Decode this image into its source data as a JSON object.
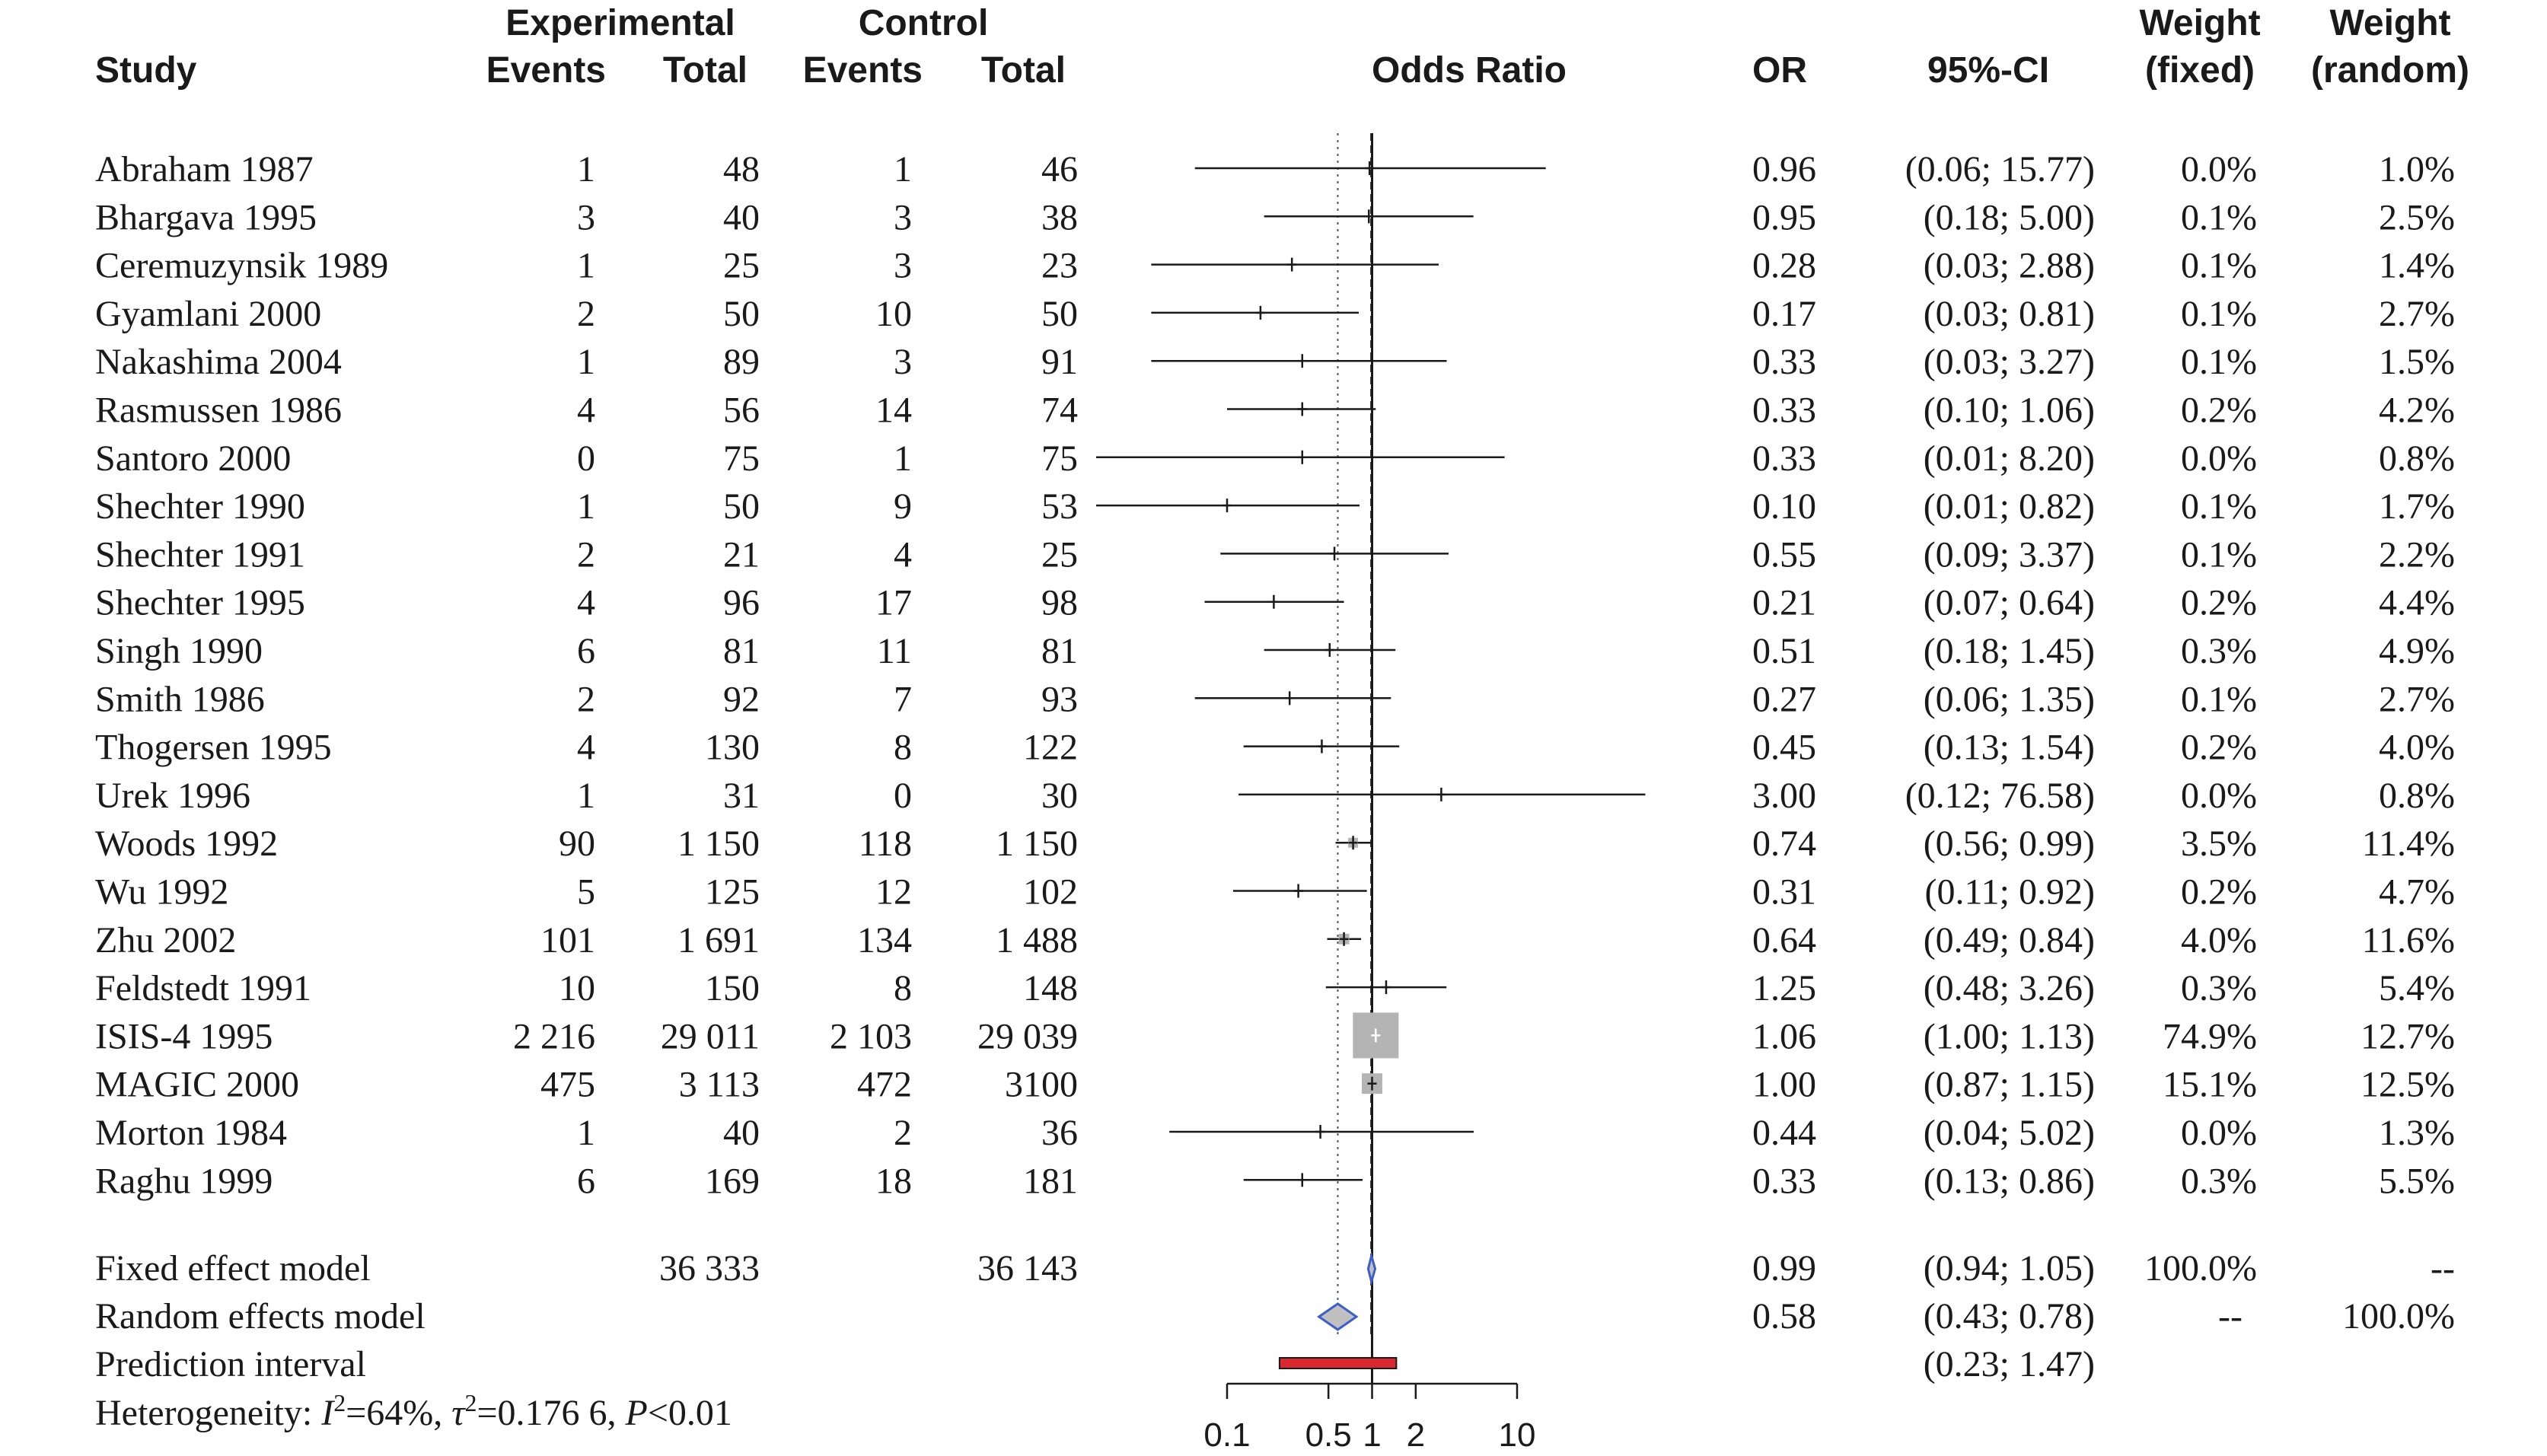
{
  "chart_data": {
    "type": "forest",
    "measure": "Odds Ratio",
    "x_scale": "log",
    "x_ticks": [
      {
        "value": 0.1,
        "label": "0.1"
      },
      {
        "value": 0.5,
        "label": "0.5"
      },
      {
        "value": 1,
        "label": "1"
      },
      {
        "value": 2,
        "label": "2"
      },
      {
        "value": 10,
        "label": "10"
      }
    ],
    "xlim": [
      0.1,
      10
    ],
    "headers": {
      "study": "Study",
      "experimental": "Experimental",
      "control": "Control",
      "events": "Events",
      "total": "Total",
      "plot": "Odds Ratio",
      "or": "OR",
      "ci": "95%-CI",
      "weight": "Weight",
      "fixed": "(fixed)",
      "random": "(random)"
    },
    "studies": [
      {
        "study": "Abraham 1987",
        "e_events": "1",
        "e_total": "48",
        "c_events": "1",
        "c_total": "46",
        "or_text": "0.96",
        "ci_text": "(0.06; 15.77)",
        "w_fixed": "0.0%",
        "w_random": "1.0%",
        "or": 0.96,
        "lower": 0.06,
        "upper": 15.77,
        "weight_fixed": 0.0
      },
      {
        "study": "Bhargava 1995",
        "e_events": "3",
        "e_total": "40",
        "c_events": "3",
        "c_total": "38",
        "or_text": "0.95",
        "ci_text": "(0.18; 5.00)",
        "w_fixed": "0.1%",
        "w_random": "2.5%",
        "or": 0.95,
        "lower": 0.18,
        "upper": 5.0,
        "weight_fixed": 0.1
      },
      {
        "study": "Ceremuzynsik 1989",
        "e_events": "1",
        "e_total": "25",
        "c_events": "3",
        "c_total": "23",
        "or_text": "0.28",
        "ci_text": "(0.03; 2.88)",
        "w_fixed": "0.1%",
        "w_random": "1.4%",
        "or": 0.28,
        "lower": 0.03,
        "upper": 2.88,
        "weight_fixed": 0.1
      },
      {
        "study": "Gyamlani 2000",
        "e_events": "2",
        "e_total": "50",
        "c_events": "10",
        "c_total": "50",
        "or_text": "0.17",
        "ci_text": "(0.03; 0.81)",
        "w_fixed": "0.1%",
        "w_random": "2.7%",
        "or": 0.17,
        "lower": 0.03,
        "upper": 0.81,
        "weight_fixed": 0.1
      },
      {
        "study": "Nakashima 2004",
        "e_events": "1",
        "e_total": "89",
        "c_events": "3",
        "c_total": "91",
        "or_text": "0.33",
        "ci_text": "(0.03; 3.27)",
        "w_fixed": "0.1%",
        "w_random": "1.5%",
        "or": 0.33,
        "lower": 0.03,
        "upper": 3.27,
        "weight_fixed": 0.1
      },
      {
        "study": "Rasmussen 1986",
        "e_events": "4",
        "e_total": "56",
        "c_events": "14",
        "c_total": "74",
        "or_text": "0.33",
        "ci_text": "(0.10; 1.06)",
        "w_fixed": "0.2%",
        "w_random": "4.2%",
        "or": 0.33,
        "lower": 0.1,
        "upper": 1.06,
        "weight_fixed": 0.2
      },
      {
        "study": "Santoro 2000",
        "e_events": "0",
        "e_total": "75",
        "c_events": "1",
        "c_total": "75",
        "or_text": "0.33",
        "ci_text": "(0.01; 8.20)",
        "w_fixed": "0.0%",
        "w_random": "0.8%",
        "or": 0.33,
        "lower": 0.01,
        "upper": 8.2,
        "weight_fixed": 0.0
      },
      {
        "study": "Shechter 1990",
        "e_events": "1",
        "e_total": "50",
        "c_events": "9",
        "c_total": "53",
        "or_text": "0.10",
        "ci_text": "(0.01; 0.82)",
        "w_fixed": "0.1%",
        "w_random": "1.7%",
        "or": 0.1,
        "lower": 0.01,
        "upper": 0.82,
        "weight_fixed": 0.1
      },
      {
        "study": "Shechter 1991",
        "e_events": "2",
        "e_total": "21",
        "c_events": "4",
        "c_total": "25",
        "or_text": "0.55",
        "ci_text": "(0.09; 3.37)",
        "w_fixed": "0.1%",
        "w_random": "2.2%",
        "or": 0.55,
        "lower": 0.09,
        "upper": 3.37,
        "weight_fixed": 0.1
      },
      {
        "study": "Shechter 1995",
        "e_events": "4",
        "e_total": "96",
        "c_events": "17",
        "c_total": "98",
        "or_text": "0.21",
        "ci_text": "(0.07; 0.64)",
        "w_fixed": "0.2%",
        "w_random": "4.4%",
        "or": 0.21,
        "lower": 0.07,
        "upper": 0.64,
        "weight_fixed": 0.2
      },
      {
        "study": "Singh 1990",
        "e_events": "6",
        "e_total": "81",
        "c_events": "11",
        "c_total": "81",
        "or_text": "0.51",
        "ci_text": "(0.18; 1.45)",
        "w_fixed": "0.3%",
        "w_random": "4.9%",
        "or": 0.51,
        "lower": 0.18,
        "upper": 1.45,
        "weight_fixed": 0.3
      },
      {
        "study": "Smith 1986",
        "e_events": "2",
        "e_total": "92",
        "c_events": "7",
        "c_total": "93",
        "or_text": "0.27",
        "ci_text": "(0.06; 1.35)",
        "w_fixed": "0.1%",
        "w_random": "2.7%",
        "or": 0.27,
        "lower": 0.06,
        "upper": 1.35,
        "weight_fixed": 0.1
      },
      {
        "study": "Thogersen 1995",
        "e_events": "4",
        "e_total": "130",
        "c_events": "8",
        "c_total": "122",
        "or_text": "0.45",
        "ci_text": "(0.13; 1.54)",
        "w_fixed": "0.2%",
        "w_random": "4.0%",
        "or": 0.45,
        "lower": 0.13,
        "upper": 1.54,
        "weight_fixed": 0.2
      },
      {
        "study": "Urek 1996",
        "e_events": "1",
        "e_total": "31",
        "c_events": "0",
        "c_total": "30",
        "or_text": "3.00",
        "ci_text": "(0.12; 76.58)",
        "w_fixed": "0.0%",
        "w_random": "0.8%",
        "or": 3.0,
        "lower": 0.12,
        "upper": 76.58,
        "weight_fixed": 0.0
      },
      {
        "study": "Woods 1992",
        "e_events": "90",
        "e_total": "1 150",
        "c_events": "118",
        "c_total": "1 150",
        "or_text": "0.74",
        "ci_text": "(0.56; 0.99)",
        "w_fixed": "3.5%",
        "w_random": "11.4%",
        "or": 0.74,
        "lower": 0.56,
        "upper": 0.99,
        "weight_fixed": 3.5
      },
      {
        "study": "Wu 1992",
        "e_events": "5",
        "e_total": "125",
        "c_events": "12",
        "c_total": "102",
        "or_text": "0.31",
        "ci_text": "(0.11; 0.92)",
        "w_fixed": "0.2%",
        "w_random": "4.7%",
        "or": 0.31,
        "lower": 0.11,
        "upper": 0.92,
        "weight_fixed": 0.2
      },
      {
        "study": "Zhu 2002",
        "e_events": "101",
        "e_total": "1 691",
        "c_events": "134",
        "c_total": "1 488",
        "or_text": "0.64",
        "ci_text": "(0.49; 0.84)",
        "w_fixed": "4.0%",
        "w_random": "11.6%",
        "or": 0.64,
        "lower": 0.49,
        "upper": 0.84,
        "weight_fixed": 4.0
      },
      {
        "study": "Feldstedt 1991",
        "e_events": "10",
        "e_total": "150",
        "c_events": "8",
        "c_total": "148",
        "or_text": "1.25",
        "ci_text": "(0.48; 3.26)",
        "w_fixed": "0.3%",
        "w_random": "5.4%",
        "or": 1.25,
        "lower": 0.48,
        "upper": 3.26,
        "weight_fixed": 0.3
      },
      {
        "study": "ISIS-4 1995",
        "e_events": "2 216",
        "e_total": "29 011",
        "c_events": "2 103",
        "c_total": "29 039",
        "or_text": "1.06",
        "ci_text": "(1.00; 1.13)",
        "w_fixed": "74.9%",
        "w_random": "12.7%",
        "or": 1.06,
        "lower": 1.0,
        "upper": 1.13,
        "weight_fixed": 74.9
      },
      {
        "study": "MAGIC 2000",
        "e_events": "475",
        "e_total": "3 113",
        "c_events": "472",
        "c_total": "3100",
        "or_text": "1.00",
        "ci_text": "(0.87; 1.15)",
        "w_fixed": "15.1%",
        "w_random": "12.5%",
        "or": 1.0,
        "lower": 0.87,
        "upper": 1.15,
        "weight_fixed": 15.1
      },
      {
        "study": "Morton 1984",
        "e_events": "1",
        "e_total": "40",
        "c_events": "2",
        "c_total": "36",
        "or_text": "0.44",
        "ci_text": "(0.04; 5.02)",
        "w_fixed": "0.0%",
        "w_random": "1.3%",
        "or": 0.44,
        "lower": 0.04,
        "upper": 5.02,
        "weight_fixed": 0.0
      },
      {
        "study": "Raghu 1999",
        "e_events": "6",
        "e_total": "169",
        "c_events": "18",
        "c_total": "181",
        "or_text": "0.33",
        "ci_text": "(0.13; 0.86)",
        "w_fixed": "0.3%",
        "w_random": "5.5%",
        "or": 0.33,
        "lower": 0.13,
        "upper": 0.86,
        "weight_fixed": 0.3
      }
    ],
    "fixed": {
      "label": "Fixed effect model",
      "e_total": "36 333",
      "c_total": "36 143",
      "or_text": "0.99",
      "ci_text": "(0.94; 1.05)",
      "w_fixed": "100.0%",
      "w_random": "--",
      "or": 0.99,
      "lower": 0.94,
      "upper": 1.05
    },
    "random": {
      "label": "Random effects model",
      "or_text": "0.58",
      "ci_text": "(0.43; 0.78)",
      "w_fixed": "--",
      "w_random": "100.0%",
      "or": 0.58,
      "lower": 0.43,
      "upper": 0.78
    },
    "prediction": {
      "label": "Prediction interval",
      "ci_text": "(0.23; 1.47)",
      "lower": 0.23,
      "upper": 1.47
    },
    "heterogeneity": {
      "prefix": "Heterogeneity: ",
      "i2_sym": "I",
      "i2_val": "=64%, ",
      "tau_sym": "τ",
      "tau_val": "=0.176 6, ",
      "p_sym": "P",
      "p_val": "<0.01"
    },
    "colors": {
      "square": "#b4b4b4",
      "diamond_fill": "#c0c0c0",
      "diamond_stroke": "#3a5fc8",
      "prediction": "#d9282f",
      "line": "#1a1a1a"
    }
  }
}
